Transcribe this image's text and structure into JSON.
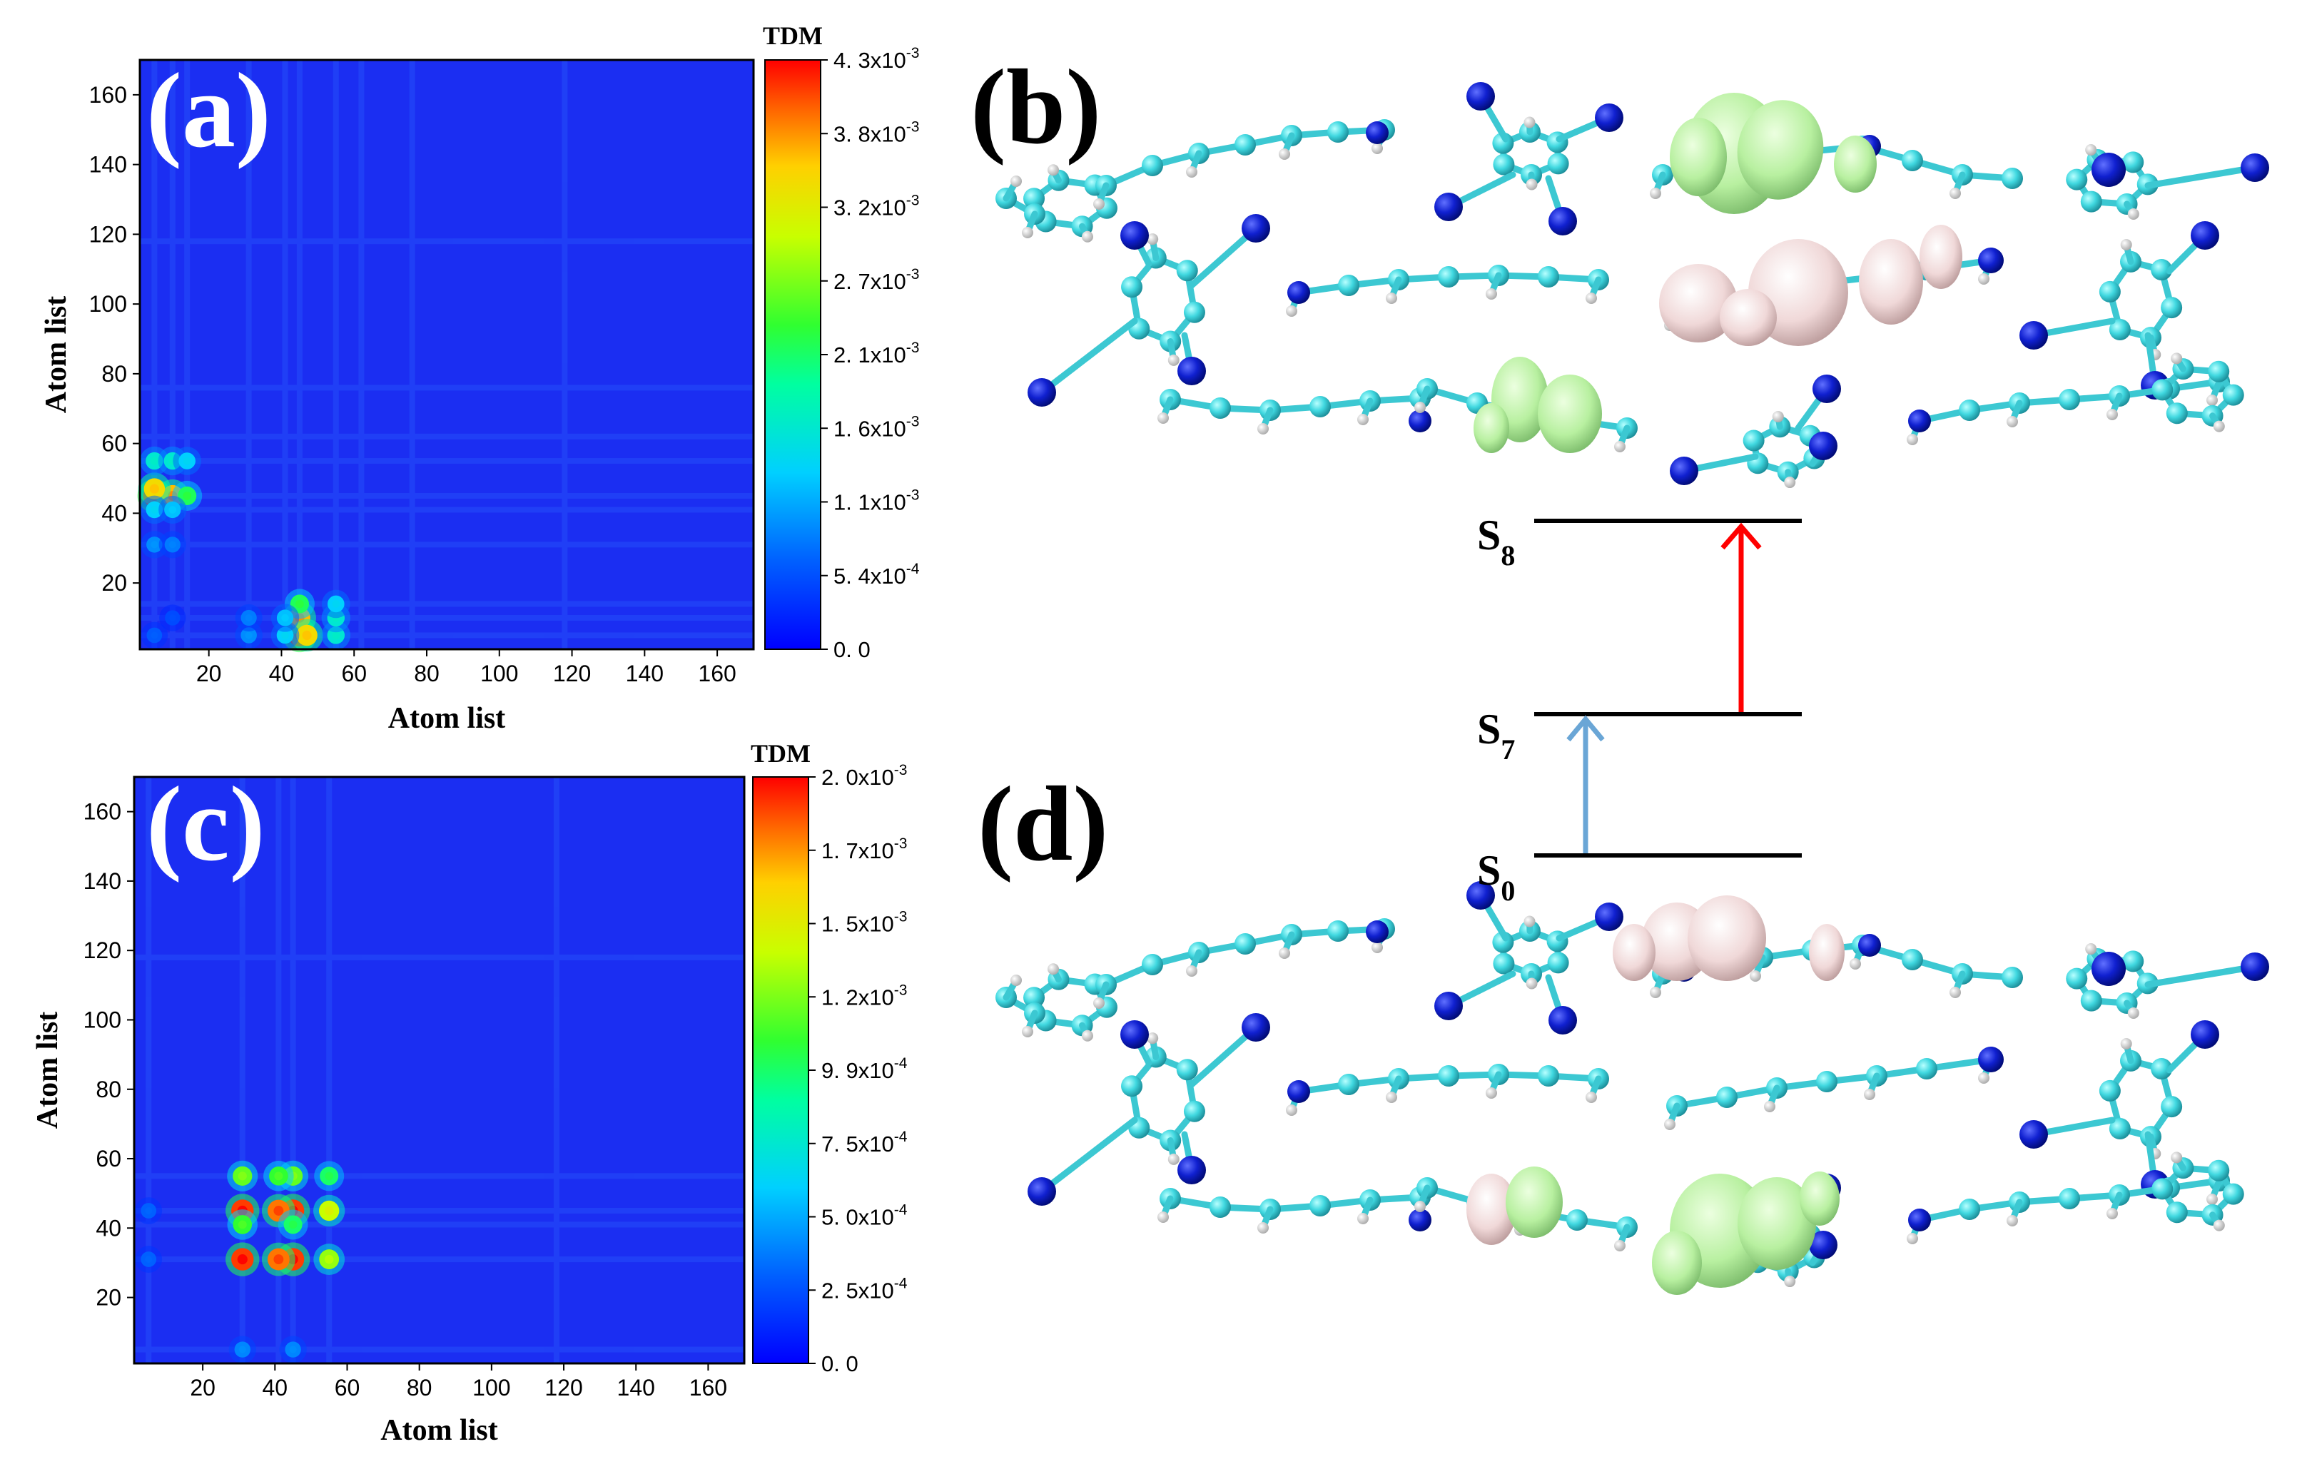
{
  "chart_data": [
    {
      "type": "heatmap",
      "panel_label": "(a)",
      "xlabel": "Atom list",
      "ylabel": "Atom list",
      "xlim": [
        1,
        170
      ],
      "ylim": [
        1,
        170
      ],
      "xticks": [
        "20",
        "40",
        "60",
        "80",
        "100",
        "120",
        "140",
        "160"
      ],
      "yticks": [
        "20",
        "40",
        "60",
        "80",
        "100",
        "120",
        "140",
        "160"
      ],
      "colorbar": {
        "title": "TDM",
        "min": 0.0,
        "max": 0.0043,
        "tick_labels": [
          "4. 3x10",
          "3. 8x10",
          "3. 2x10",
          "2. 7x10",
          "2. 1x10",
          "1. 6x10",
          "1. 1x10",
          "5. 4x10",
          "0. 0"
        ],
        "tick_exponents": [
          "-3",
          "-3",
          "-3",
          "-3",
          "-3",
          "-3",
          "-3",
          "-4",
          ""
        ]
      },
      "hotspots": [
        {
          "x": 5,
          "y": 45,
          "v": 0.0041
        },
        {
          "x": 10,
          "y": 45,
          "v": 0.0036
        },
        {
          "x": 5,
          "y": 47,
          "v": 0.0034
        },
        {
          "x": 14,
          "y": 45,
          "v": 0.0022
        },
        {
          "x": 5,
          "y": 55,
          "v": 0.0016
        },
        {
          "x": 10,
          "y": 55,
          "v": 0.0016
        },
        {
          "x": 14,
          "y": 55,
          "v": 0.0013
        },
        {
          "x": 5,
          "y": 41,
          "v": 0.0013
        },
        {
          "x": 10,
          "y": 41,
          "v": 0.0012
        },
        {
          "x": 5,
          "y": 31,
          "v": 0.0009
        },
        {
          "x": 10,
          "y": 31,
          "v": 0.0008
        },
        {
          "x": 45,
          "y": 5,
          "v": 0.0041
        },
        {
          "x": 45,
          "y": 10,
          "v": 0.0036
        },
        {
          "x": 47,
          "y": 5,
          "v": 0.0034
        },
        {
          "x": 45,
          "y": 14,
          "v": 0.0022
        },
        {
          "x": 55,
          "y": 5,
          "v": 0.0016
        },
        {
          "x": 55,
          "y": 10,
          "v": 0.0016
        },
        {
          "x": 55,
          "y": 14,
          "v": 0.0013
        },
        {
          "x": 41,
          "y": 5,
          "v": 0.0013
        },
        {
          "x": 41,
          "y": 10,
          "v": 0.0012
        },
        {
          "x": 31,
          "y": 5,
          "v": 0.0009
        },
        {
          "x": 31,
          "y": 10,
          "v": 0.0008
        },
        {
          "x": 5,
          "y": 5,
          "v": 0.0006
        },
        {
          "x": 10,
          "y": 10,
          "v": 0.0005
        }
      ]
    },
    {
      "type": "heatmap",
      "panel_label": "(c)",
      "xlabel": "Atom list",
      "ylabel": "Atom list",
      "xlim": [
        1,
        170
      ],
      "ylim": [
        1,
        170
      ],
      "xticks": [
        "20",
        "40",
        "60",
        "80",
        "100",
        "120",
        "140",
        "160"
      ],
      "yticks": [
        "20",
        "40",
        "60",
        "80",
        "100",
        "120",
        "140",
        "160"
      ],
      "colorbar": {
        "title": "TDM",
        "min": 0.0,
        "max": 0.002,
        "tick_labels": [
          "2. 0x10",
          "1. 7x10",
          "1. 5x10",
          "1. 2x10",
          "9. 9x10",
          "7. 5x10",
          "5. 0x10",
          "2. 5x10",
          "0. 0"
        ],
        "tick_exponents": [
          "-3",
          "-3",
          "-3",
          "-3",
          "-4",
          "-4",
          "-4",
          "-4",
          ""
        ]
      },
      "hotspots": [
        {
          "x": 31,
          "y": 31,
          "v": 0.0019
        },
        {
          "x": 31,
          "y": 45,
          "v": 0.0019
        },
        {
          "x": 45,
          "y": 31,
          "v": 0.0019
        },
        {
          "x": 45,
          "y": 45,
          "v": 0.0019
        },
        {
          "x": 41,
          "y": 31,
          "v": 0.0018
        },
        {
          "x": 41,
          "y": 45,
          "v": 0.0018
        },
        {
          "x": 55,
          "y": 45,
          "v": 0.0014
        },
        {
          "x": 55,
          "y": 31,
          "v": 0.0013
        },
        {
          "x": 31,
          "y": 55,
          "v": 0.0012
        },
        {
          "x": 45,
          "y": 55,
          "v": 0.0012
        },
        {
          "x": 41,
          "y": 55,
          "v": 0.0011
        },
        {
          "x": 55,
          "y": 55,
          "v": 0.001
        },
        {
          "x": 31,
          "y": 41,
          "v": 0.0011
        },
        {
          "x": 45,
          "y": 41,
          "v": 0.001
        },
        {
          "x": 31,
          "y": 5,
          "v": 0.0004
        },
        {
          "x": 45,
          "y": 5,
          "v": 0.0004
        },
        {
          "x": 5,
          "y": 31,
          "v": 0.0003
        },
        {
          "x": 5,
          "y": 45,
          "v": 0.0003
        }
      ]
    }
  ],
  "diagram": {
    "panel_b_label": "(b)",
    "panel_d_label": "(d)",
    "states": [
      {
        "name": "S",
        "sub": "8"
      },
      {
        "name": "S",
        "sub": "7"
      },
      {
        "name": "S",
        "sub": "0"
      }
    ],
    "transitions": [
      {
        "from": "S0",
        "to": "S7",
        "color": "#6aa6d6"
      },
      {
        "from": "S7",
        "to": "S8",
        "color": "#ff0000"
      }
    ]
  },
  "colors": {
    "heatmap_bg": "#1e2cf0",
    "carbon": "#40d8e0",
    "nitrogen": "#1020d0",
    "hydrogen": "#e8e8e8",
    "lobe_green": "#b8f0a0",
    "lobe_pink": "#f0d8d8"
  }
}
